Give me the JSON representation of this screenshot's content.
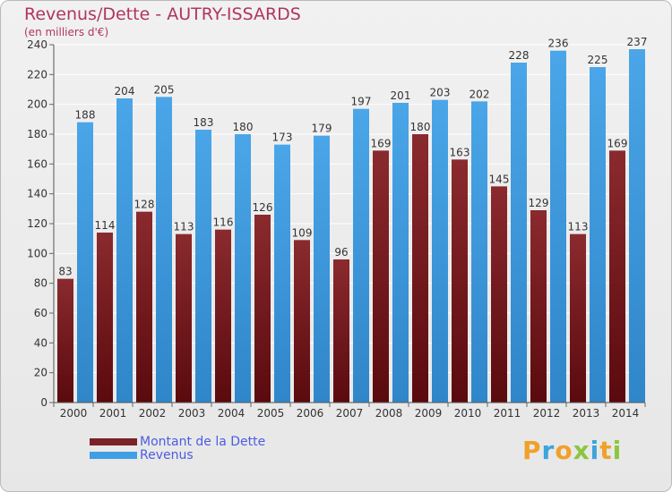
{
  "header": {
    "title": "Revenus/Dette - AUTRY-ISSARDS",
    "subtitle": "(en milliers d'€)"
  },
  "chart_data": {
    "type": "bar",
    "title": "Revenus/Dette - AUTRY-ISSARDS",
    "ylabel": "(en milliers d'€)",
    "xlabel": "",
    "ylim": [
      0,
      240
    ],
    "yticks": [
      0,
      20,
      40,
      60,
      80,
      100,
      120,
      140,
      160,
      180,
      200,
      220,
      240
    ],
    "grid": true,
    "categories": [
      "2000",
      "2001",
      "2002",
      "2003",
      "2004",
      "2005",
      "2006",
      "2007",
      "2008",
      "2009",
      "2010",
      "2011",
      "2012",
      "2013",
      "2014"
    ],
    "series": [
      {
        "name": "Montant de la Dette",
        "color": "#7b2226",
        "values": [
          83,
          114,
          128,
          113,
          116,
          126,
          109,
          96,
          169,
          180,
          163,
          145,
          129,
          113,
          169
        ]
      },
      {
        "name": "Revenus",
        "color": "#3f9ee4",
        "values": [
          188,
          204,
          205,
          183,
          180,
          173,
          179,
          197,
          201,
          203,
          202,
          228,
          236,
          225,
          237
        ]
      }
    ]
  },
  "legend": {
    "items": [
      {
        "label": "Montant de la Dette",
        "color": "#7b2226"
      },
      {
        "label": "Revenus",
        "color": "#3f9ee4"
      }
    ]
  },
  "logo": {
    "text": "Proxiti",
    "letters": [
      "P",
      "r",
      "o",
      "x",
      "i",
      "t",
      "i"
    ],
    "colors": [
      "#f0a12a",
      "#3fa3dc",
      "#f0a12a",
      "#8cc63f",
      "#3fa3dc",
      "#f0a12a",
      "#8cc63f"
    ]
  }
}
